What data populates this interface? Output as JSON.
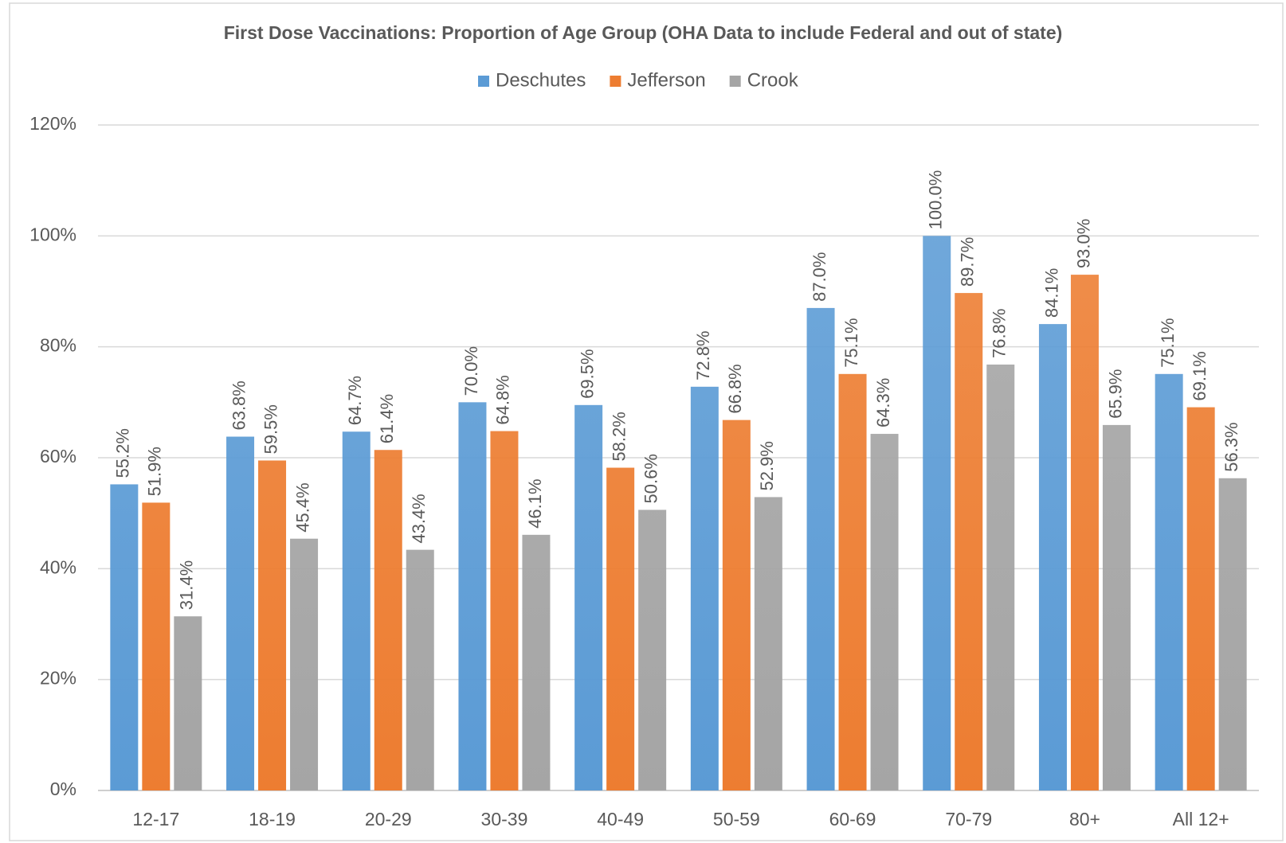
{
  "chart_data": {
    "type": "bar",
    "title": "First Dose Vaccinations: Proportion of Age Group (OHA Data to include Federal and out of state)",
    "categories": [
      "12-17",
      "18-19",
      "20-29",
      "30-39",
      "40-49",
      "50-59",
      "60-69",
      "70-79",
      "80+",
      "All 12+"
    ],
    "series": [
      {
        "name": "Deschutes",
        "color": "#5b9bd5",
        "values": [
          55.2,
          63.8,
          64.7,
          70.0,
          69.5,
          72.8,
          87.0,
          100.0,
          84.1,
          75.1
        ],
        "value_labels": [
          "55.2%",
          "63.8%",
          "64.7%",
          "70.0%",
          "69.5%",
          "72.8%",
          "87.0%",
          "100.0%",
          "84.1%",
          "75.1%"
        ]
      },
      {
        "name": "Jefferson",
        "color": "#ed7d31",
        "values": [
          51.9,
          59.5,
          61.4,
          64.8,
          58.2,
          66.8,
          75.1,
          89.7,
          93.0,
          69.1
        ],
        "value_labels": [
          "51.9%",
          "59.5%",
          "61.4%",
          "64.8%",
          "58.2%",
          "66.8%",
          "75.1%",
          "89.7%",
          "93.0%",
          "69.1%"
        ]
      },
      {
        "name": "Crook",
        "color": "#a5a5a5",
        "values": [
          31.4,
          45.4,
          43.4,
          46.1,
          50.6,
          52.9,
          64.3,
          76.8,
          65.9,
          56.3
        ],
        "value_labels": [
          "31.4%",
          "45.4%",
          "43.4%",
          "46.1%",
          "50.6%",
          "52.9%",
          "64.3%",
          "76.8%",
          "65.9%",
          "56.3%"
        ]
      }
    ],
    "ylim": [
      0,
      120
    ],
    "yticks": [
      {
        "value": 0,
        "label": "0%"
      },
      {
        "value": 20,
        "label": "20%"
      },
      {
        "value": 40,
        "label": "40%"
      },
      {
        "value": 60,
        "label": "60%"
      },
      {
        "value": 80,
        "label": "80%"
      },
      {
        "value": 100,
        "label": "100%"
      },
      {
        "value": 120,
        "label": "120%"
      }
    ],
    "grid": true,
    "legend": "top"
  }
}
